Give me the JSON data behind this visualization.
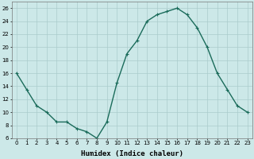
{
  "x": [
    0,
    1,
    2,
    3,
    4,
    5,
    6,
    7,
    8,
    9,
    10,
    11,
    12,
    13,
    14,
    15,
    16,
    17,
    18,
    19,
    20,
    21,
    22,
    23
  ],
  "y": [
    16,
    13.5,
    11,
    10,
    8.5,
    8.5,
    7.5,
    7,
    6,
    8.5,
    14.5,
    19,
    21,
    24,
    25,
    25.5,
    26,
    25,
    23,
    20,
    16,
    13.5,
    11,
    10
  ],
  "line_color": "#1a6b5a",
  "marker": "+",
  "marker_size": 3,
  "marker_edge_width": 0.8,
  "line_width": 1.0,
  "bg_color": "#cce8e8",
  "grid_color": "#aacccc",
  "xlabel": "Humidex (Indice chaleur)",
  "xlabel_fontsize": 6.5,
  "xlabel_fontweight": "bold",
  "ylim": [
    6,
    27
  ],
  "yticks": [
    6,
    8,
    10,
    12,
    14,
    16,
    18,
    20,
    22,
    24,
    26
  ],
  "xticks": [
    0,
    1,
    2,
    3,
    4,
    5,
    6,
    7,
    8,
    9,
    10,
    11,
    12,
    13,
    14,
    15,
    16,
    17,
    18,
    19,
    20,
    21,
    22,
    23
  ],
  "tick_fontsize": 5.0,
  "title": ""
}
